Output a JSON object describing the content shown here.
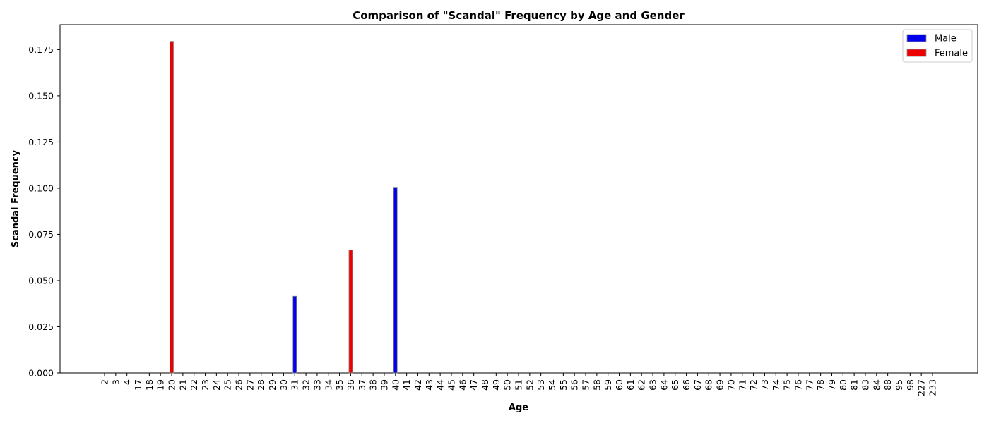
{
  "chart_data": {
    "type": "bar",
    "title": "Comparison of \"Scandal\" Frequency by Age and Gender",
    "xlabel": "Age",
    "ylabel": "Scandal Frequency",
    "ylim": [
      0,
      0.1885
    ],
    "yticks": [
      0.0,
      0.025,
      0.05,
      0.075,
      0.1,
      0.125,
      0.15,
      0.175
    ],
    "ytick_labels": [
      "0.000",
      "0.025",
      "0.050",
      "0.075",
      "0.100",
      "0.125",
      "0.150",
      "0.175"
    ],
    "categories": [
      "2",
      "3",
      "4",
      "17",
      "18",
      "19",
      "20",
      "21",
      "22",
      "23",
      "24",
      "25",
      "26",
      "27",
      "28",
      "29",
      "30",
      "31",
      "32",
      "33",
      "34",
      "35",
      "36",
      "37",
      "38",
      "39",
      "40",
      "41",
      "42",
      "43",
      "44",
      "45",
      "46",
      "47",
      "48",
      "49",
      "50",
      "51",
      "52",
      "53",
      "54",
      "55",
      "56",
      "57",
      "58",
      "59",
      "60",
      "61",
      "62",
      "63",
      "64",
      "65",
      "66",
      "67",
      "68",
      "69",
      "70",
      "71",
      "72",
      "73",
      "74",
      "75",
      "76",
      "77",
      "78",
      "79",
      "80",
      "81",
      "83",
      "84",
      "88",
      "95",
      "98",
      "227",
      "233"
    ],
    "series": [
      {
        "name": "Male",
        "color": "#0000ee",
        "values": [
          0,
          0,
          0,
          0,
          0,
          0,
          0,
          0,
          0,
          0,
          0,
          0,
          0,
          0,
          0,
          0,
          0,
          0.0415,
          0,
          0,
          0,
          0,
          0,
          0,
          0,
          0,
          0.1005,
          0,
          0,
          0,
          0,
          0,
          0,
          0,
          0,
          0,
          0,
          0,
          0,
          0,
          0,
          0,
          0,
          0,
          0,
          0,
          0,
          0,
          0,
          0,
          0,
          0,
          0,
          0,
          0,
          0,
          0,
          0,
          0,
          0,
          0,
          0,
          0,
          0,
          0,
          0,
          0,
          0,
          0,
          0,
          0,
          0,
          0,
          0,
          0
        ]
      },
      {
        "name": "Female",
        "color": "#ee0000",
        "values": [
          0,
          0,
          0,
          0,
          0,
          0,
          0.1795,
          0,
          0,
          0,
          0,
          0,
          0,
          0,
          0,
          0,
          0,
          0,
          0,
          0,
          0,
          0,
          0.0665,
          0,
          0,
          0,
          0,
          0,
          0,
          0,
          0,
          0,
          0,
          0,
          0,
          0,
          0,
          0,
          0,
          0,
          0,
          0,
          0,
          0,
          0,
          0,
          0,
          0,
          0,
          0,
          0,
          0,
          0,
          0,
          0,
          0,
          0,
          0,
          0,
          0,
          0,
          0,
          0,
          0,
          0,
          0,
          0,
          0,
          0,
          0,
          0,
          0,
          0,
          0,
          0
        ]
      }
    ],
    "legend_position": "top-right",
    "grid": false
  }
}
